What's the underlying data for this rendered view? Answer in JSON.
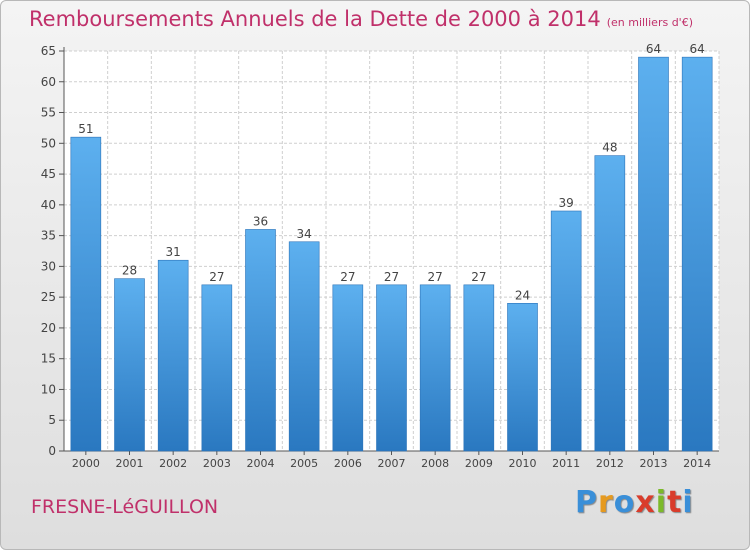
{
  "title": "Remboursements Annuels de la Dette de 2000 à 2014",
  "subtitle": "(en milliers d'€)",
  "town": "FRESNE-LéGUILLON",
  "logo": {
    "letters": [
      "P",
      "r",
      "o",
      "x",
      "i",
      "t",
      "i"
    ],
    "colors": [
      "#3a8fd8",
      "#e69a1f",
      "#3a8fd8",
      "#d93c2b",
      "#7cba2a",
      "#d93c2b",
      "#3a8fd8"
    ]
  },
  "colors": {
    "bar": "#4aa0e4",
    "bar_dark": "#2a78c0",
    "text": "#c0306a",
    "grid": "#cfcfcf"
  },
  "chart_data": {
    "type": "bar",
    "categories": [
      "2000",
      "2001",
      "2002",
      "2003",
      "2004",
      "2005",
      "2006",
      "2007",
      "2008",
      "2009",
      "2010",
      "2011",
      "2012",
      "2013",
      "2014"
    ],
    "values": [
      51,
      28,
      31,
      27,
      36,
      34,
      27,
      27,
      27,
      27,
      24,
      39,
      48,
      64,
      64
    ],
    "ylim": [
      0,
      65
    ],
    "yticks": [
      0,
      5,
      10,
      15,
      20,
      25,
      30,
      35,
      40,
      45,
      50,
      55,
      60,
      65
    ],
    "grid": true,
    "xlabel": "",
    "ylabel": ""
  }
}
